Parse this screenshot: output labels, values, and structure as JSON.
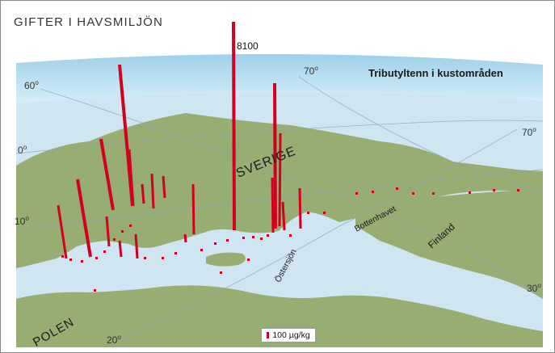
{
  "header": {
    "title": "GIFTER I HAVSMILJÖN"
  },
  "map": {
    "title": "Tributyltenn i kustområden",
    "peak_label": "8100",
    "country_labels": {
      "sweden": "SVERIGE",
      "finland": "Finland",
      "poland": "POLEN"
    },
    "sea_labels": {
      "bothnian": "Bottenhavet",
      "baltic_east": "Östersjön"
    },
    "graticule_labels": [
      {
        "text": "60",
        "sup": "o"
      },
      {
        "text": "70",
        "sup": "o"
      },
      {
        "text": "70",
        "sup": "o"
      },
      {
        "text": "0",
        "sup": "o"
      },
      {
        "text": "10",
        "sup": "o"
      },
      {
        "text": "20",
        "sup": "o"
      },
      {
        "text": "30",
        "sup": "o"
      }
    ]
  },
  "legend": {
    "label": "100 µg/kg",
    "color": "#d2001f"
  },
  "colors": {
    "land": "#97ad72",
    "sea": "#cfe5f2",
    "sky": "#bfe1f1",
    "bar": "#d2001f"
  }
}
